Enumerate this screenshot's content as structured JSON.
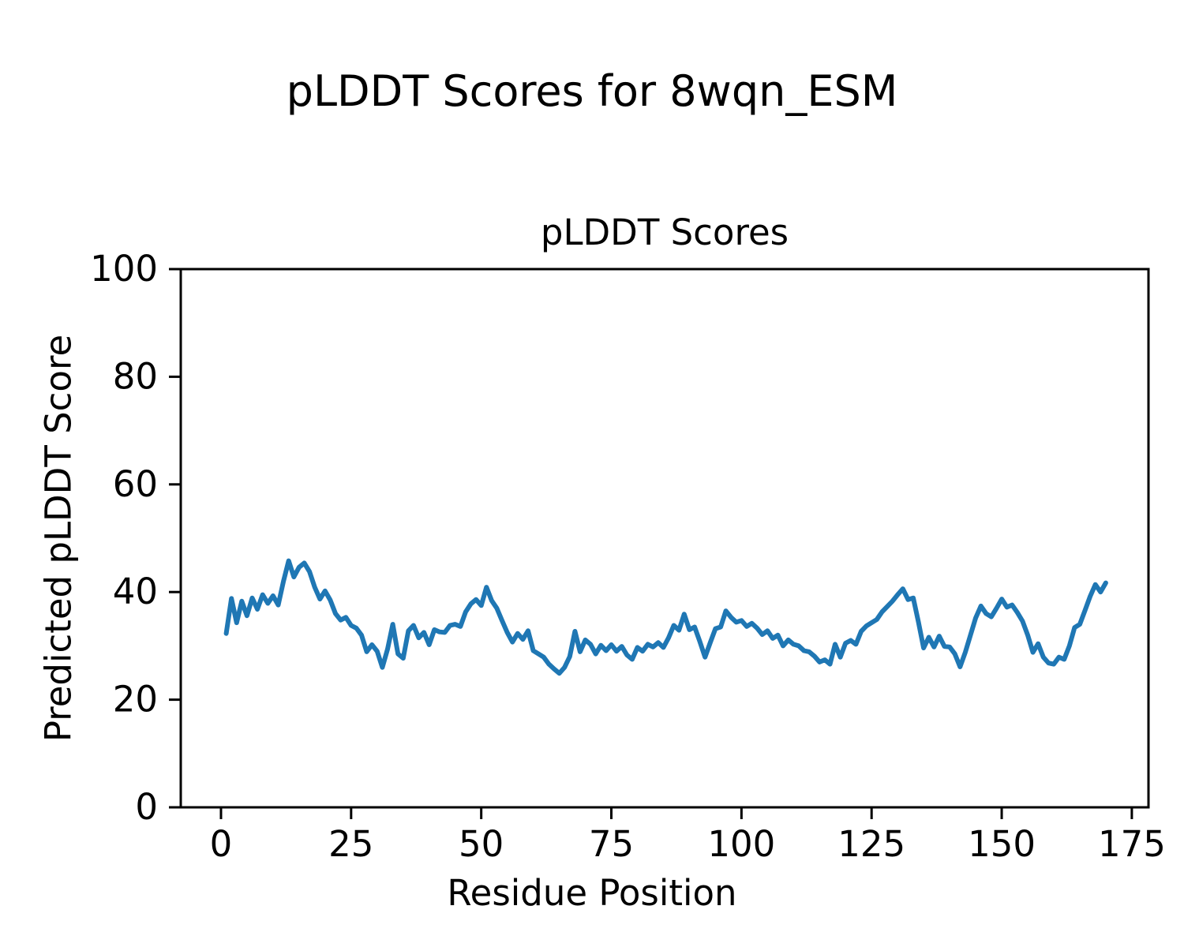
{
  "figure": {
    "background": "#ffffff",
    "text_color": "#000000"
  },
  "chart_data": {
    "type": "line",
    "suptitle": "pLDDT Scores for 8wqn_ESM",
    "title": "pLDDT Scores",
    "xlabel": "Residue Position",
    "ylabel": "Predicted pLDDT Score",
    "xlim": [
      -7.73,
      178.2
    ],
    "ylim": [
      0,
      100
    ],
    "xticks": [
      0,
      25,
      50,
      75,
      100,
      125,
      150,
      175
    ],
    "yticks": [
      0,
      20,
      40,
      60,
      80,
      100
    ],
    "grid": false,
    "legend_position": "none",
    "line_color": "#1f77b4",
    "axis_color": "#000000",
    "series": [
      {
        "name": "pLDDT",
        "x_start": 1,
        "values": [
          32.3,
          38.8,
          34.3,
          38.3,
          35.6,
          38.9,
          36.8,
          39.5,
          37.9,
          39.3,
          37.6,
          42.0,
          45.8,
          42.8,
          44.6,
          45.4,
          43.8,
          40.9,
          38.7,
          40.2,
          38.5,
          36.0,
          34.8,
          35.3,
          33.8,
          33.3,
          32.0,
          28.9,
          30.2,
          29.0,
          26.0,
          29.4,
          34.0,
          28.5,
          27.7,
          32.8,
          33.8,
          31.5,
          32.5,
          30.2,
          33.0,
          32.6,
          32.5,
          33.8,
          34.0,
          33.6,
          36.3,
          37.8,
          38.6,
          37.5,
          40.9,
          38.4,
          37.0,
          34.7,
          32.5,
          30.7,
          32.3,
          31.2,
          32.8,
          29.1,
          28.5,
          27.9,
          26.6,
          25.7,
          24.9,
          26.0,
          28.0,
          32.7,
          28.9,
          31.1,
          30.3,
          28.5,
          30.1,
          29.1,
          30.2,
          29.0,
          29.9,
          28.3,
          27.5,
          29.7,
          29.0,
          30.3,
          29.8,
          30.6,
          29.7,
          31.5,
          33.8,
          32.9,
          35.9,
          33.0,
          33.5,
          30.8,
          27.9,
          30.6,
          33.2,
          33.5,
          36.5,
          35.3,
          34.4,
          34.7,
          33.6,
          34.2,
          33.3,
          32.1,
          32.8,
          31.4,
          32.0,
          30.0,
          31.1,
          30.3,
          30.0,
          29.1,
          28.9,
          28.1,
          27.0,
          27.4,
          26.6,
          30.3,
          27.9,
          30.5,
          31.0,
          30.3,
          32.7,
          33.7,
          34.3,
          34.9,
          36.3,
          37.3,
          38.3,
          39.5,
          40.6,
          38.6,
          38.9,
          34.4,
          29.6,
          31.6,
          29.8,
          31.8,
          29.9,
          29.8,
          28.5,
          26.1,
          28.8,
          32.0,
          35.2,
          37.4,
          36.0,
          35.4,
          37.0,
          38.7,
          37.2,
          37.6,
          36.2,
          34.6,
          32.0,
          28.8,
          30.4,
          27.9,
          26.8,
          26.6,
          27.9,
          27.5,
          30.0,
          33.4,
          34.0,
          36.6,
          39.2,
          41.4,
          40.0,
          41.7
        ]
      }
    ]
  }
}
